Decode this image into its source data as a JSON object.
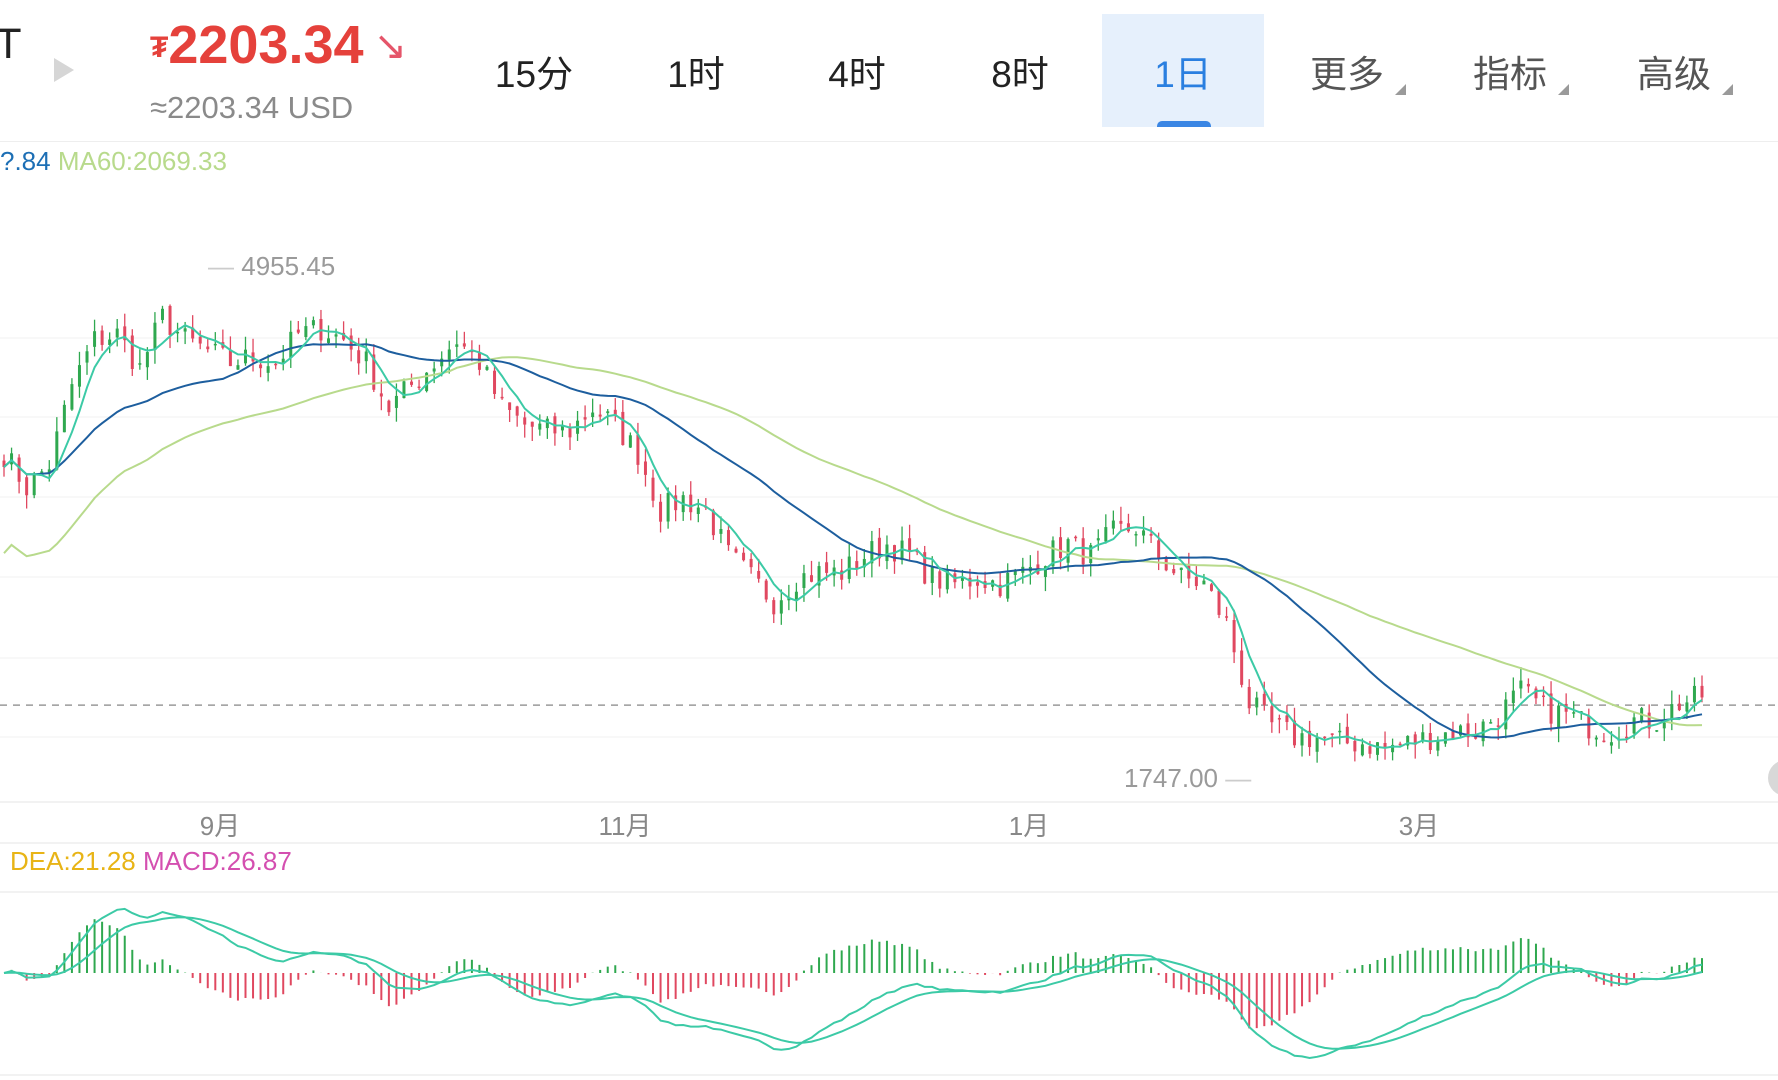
{
  "header": {
    "symbol_fragment": "T",
    "price_currency": "₮",
    "price": "2203.34",
    "price_direction_icon": "arrow-down-right-icon",
    "price_usd": "≈2203.34 USD"
  },
  "tabs": [
    {
      "label": "15分",
      "active": false,
      "dropdown": false
    },
    {
      "label": "1时",
      "active": false,
      "dropdown": false
    },
    {
      "label": "4时",
      "active": false,
      "dropdown": false
    },
    {
      "label": "8时",
      "active": false,
      "dropdown": false
    },
    {
      "label": "1日",
      "active": true,
      "dropdown": false
    },
    {
      "label": "更多",
      "active": false,
      "dropdown": true
    },
    {
      "label": "指标",
      "active": false,
      "dropdown": true
    },
    {
      "label": "高级",
      "active": false,
      "dropdown": true
    }
  ],
  "legend": {
    "ma30_fragment": "?.84",
    "ma60": "MA60:2069.33",
    "dea": "DEA:21.28",
    "macd": "MACD:26.87"
  },
  "colors": {
    "up": "#2fa84f",
    "down": "#e04860",
    "ma5": "#3ccaa6",
    "ma30": "#1d5e9e",
    "ma60": "#b8da8c",
    "dea_text": "#e8b416",
    "macd_text": "#d44fb0",
    "ma30_text": "#1d6fb5"
  },
  "chart_data": {
    "type": "candlestick",
    "interval": "1日",
    "x_tick_labels": [
      "9月",
      "11月",
      "1月",
      "3月"
    ],
    "high_label": "4955.45",
    "low_label": "1747.00",
    "current_price": 2203.34,
    "ylim": [
      1747.0,
      4955.45
    ],
    "close_keypoints": [
      3781,
      3568,
      3710,
      4208,
      4493,
      4528,
      4315,
      4635,
      4493,
      4421,
      4350,
      4386,
      4350,
      4528,
      4564,
      4493,
      4350,
      4066,
      4208,
      4350,
      4493,
      4350,
      4066,
      3959,
      3924,
      3924,
      4066,
      3959,
      3781,
      3425,
      3497,
      3425,
      3141,
      2999,
      2856,
      2999,
      3034,
      3034,
      3141,
      3212,
      3141,
      2999,
      2963,
      2999,
      2963,
      3034,
      3141,
      3212,
      3141,
      3283,
      3319,
      3141,
      2999,
      2963,
      2714,
      2216,
      2074,
      2003,
      2003,
      1967,
      1967,
      1932,
      1967,
      2003,
      2038,
      2038,
      2145,
      2287,
      2180,
      2145,
      2074,
      2038,
      2109,
      2109,
      2216,
      2252
    ],
    "indicators": [
      "MA5",
      "MA30",
      "MA60",
      "MACD(DIF, DEA, histogram)"
    ]
  }
}
